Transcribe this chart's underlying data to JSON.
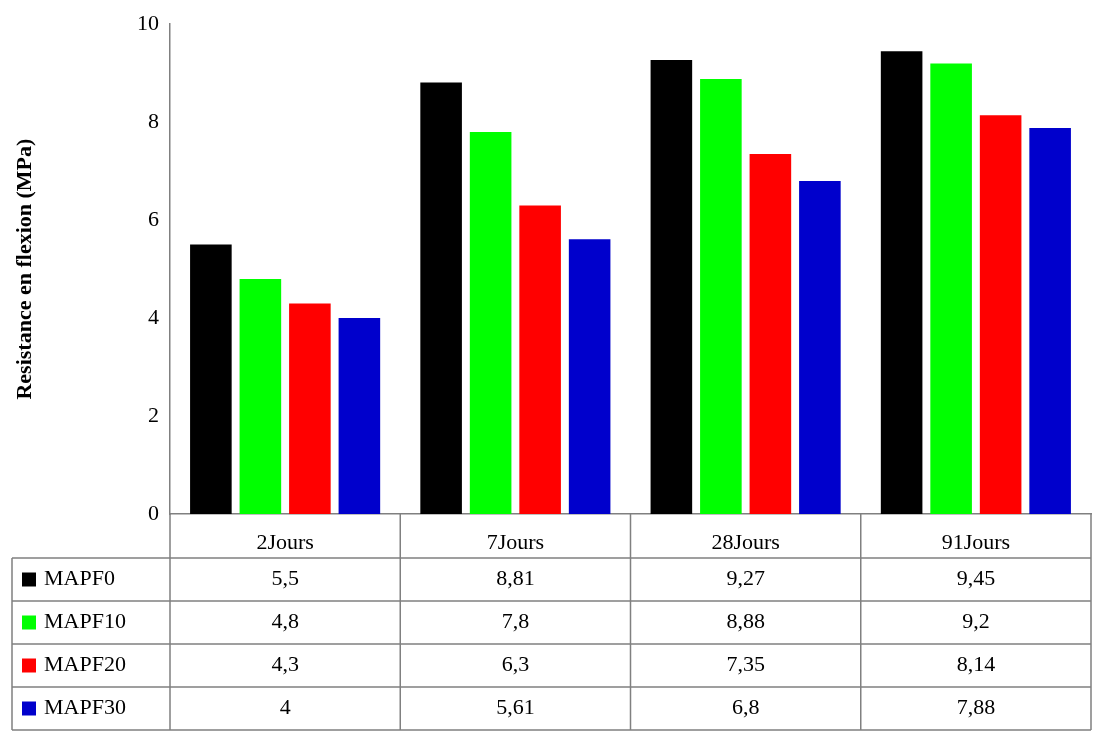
{
  "chart_data": {
    "type": "bar",
    "ylabel": "Resistance en flexion (MPa)",
    "categories": [
      "2Jours",
      "7Jours",
      "28Jours",
      "91Jours"
    ],
    "series": [
      {
        "name": "MAPF0",
        "color": "#000000",
        "values": [
          5.5,
          8.81,
          9.27,
          9.45
        ],
        "value_labels": [
          "5,5",
          "8,81",
          "9,27",
          "9,45"
        ]
      },
      {
        "name": "MAPF10",
        "color": "#00ff00",
        "values": [
          4.8,
          7.8,
          8.88,
          9.2
        ],
        "value_labels": [
          "4,8",
          "7,8",
          "8,88",
          "9,2"
        ]
      },
      {
        "name": "MAPF20",
        "color": "#ff0000",
        "values": [
          4.3,
          6.3,
          7.35,
          8.14
        ],
        "value_labels": [
          "4,3",
          "6,3",
          "7,35",
          "8,14"
        ]
      },
      {
        "name": "MAPF30",
        "color": "#0000cc",
        "values": [
          4,
          5.61,
          6.8,
          7.88
        ],
        "value_labels": [
          "4",
          "5,61",
          "6,8",
          "7,88"
        ]
      }
    ],
    "ylim": [
      0,
      10
    ],
    "yticks": [
      0,
      2,
      4,
      6,
      8,
      10
    ],
    "grid": false,
    "legend": "bottom left"
  }
}
